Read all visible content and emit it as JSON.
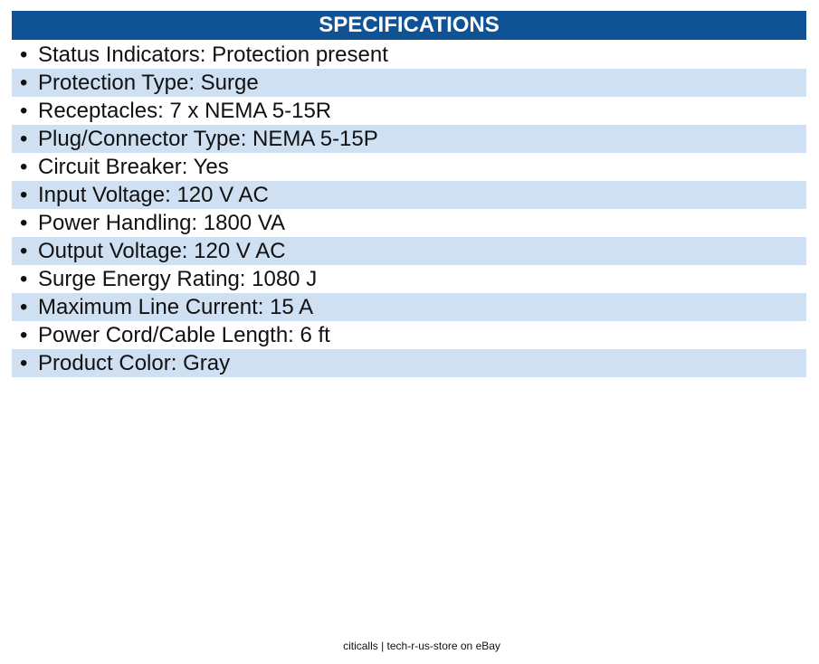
{
  "header": {
    "title": "SPECIFICATIONS"
  },
  "items": [
    "Status Indicators: Protection present",
    "Protection Type: Surge",
    "Receptacles: 7 x NEMA 5-15R",
    "Plug/Connector Type: NEMA 5-15P",
    "Circuit Breaker: Yes",
    "Input Voltage: 120 V AC",
    "Power Handling: 1800 VA",
    "Output Voltage: 120 V AC",
    "Surge Energy Rating: 1080 J",
    "Maximum Line Current: 15 A",
    "Power Cord/Cable Length: 6 ft",
    "Product Color: Gray"
  ],
  "footer": "citicalls | tech-r-us-store on eBay"
}
